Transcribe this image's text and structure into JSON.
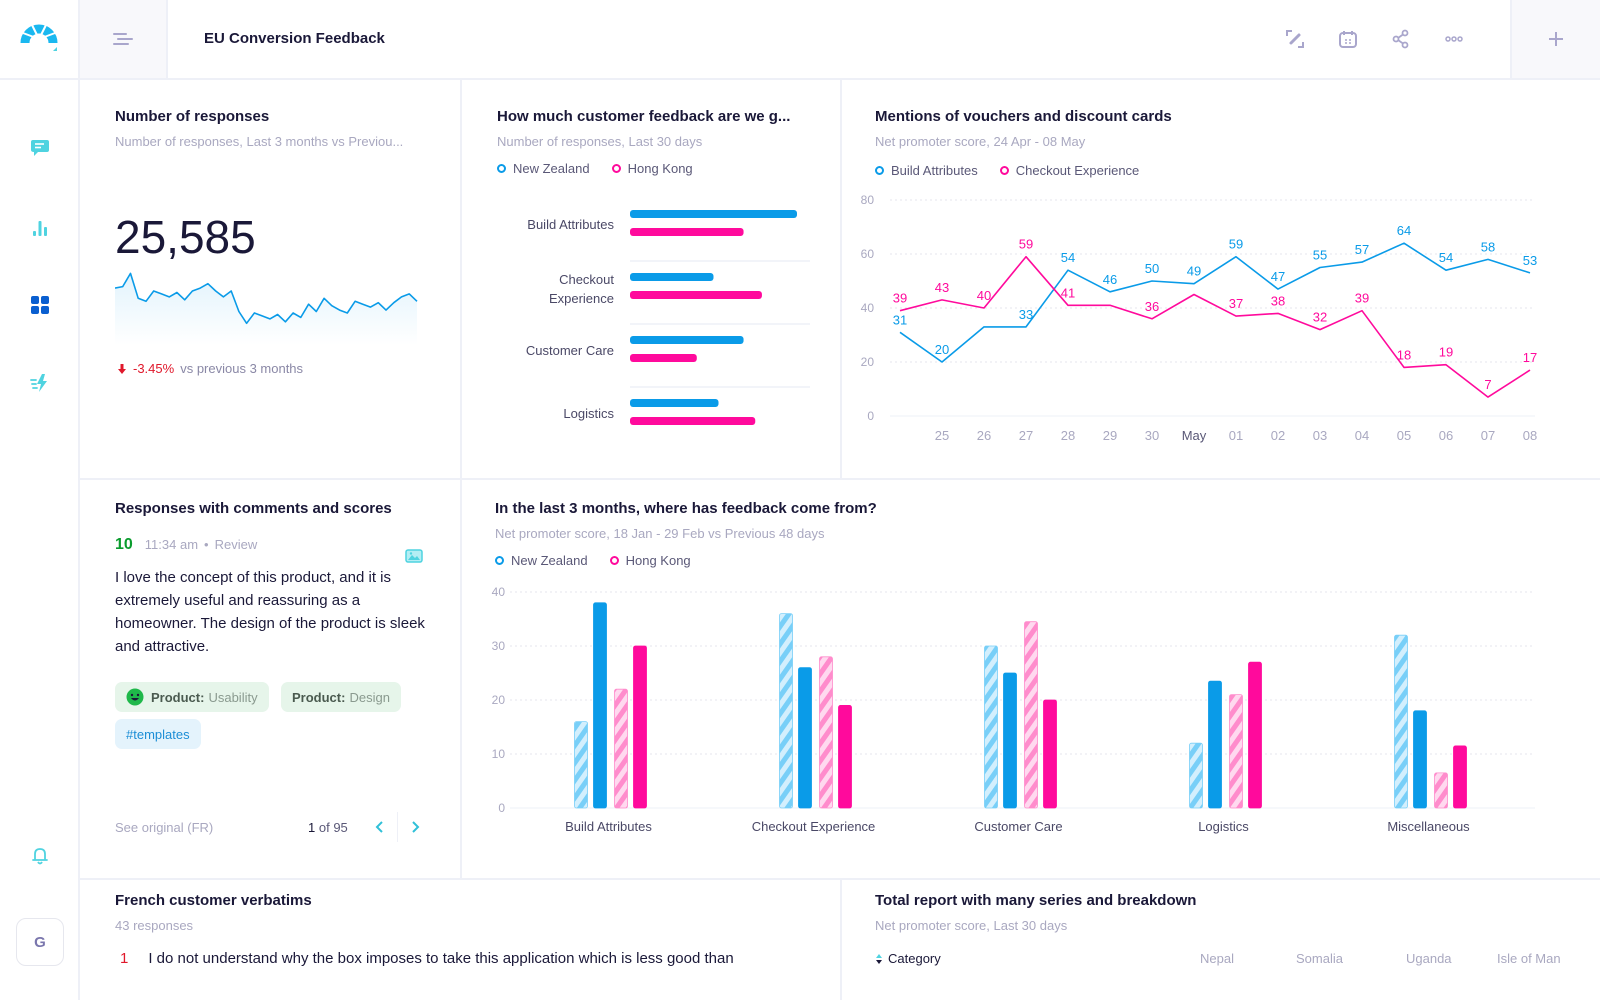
{
  "header": {
    "title": "EU Conversion Feedback",
    "actions": [
      "edit-icon",
      "calendar-icon",
      "share-icon",
      "more-icon"
    ],
    "add_icon": "plus-icon"
  },
  "sidebar": {
    "items": [
      {
        "name": "feedback",
        "icon": "chat-icon",
        "active": false
      },
      {
        "name": "reports",
        "icon": "bar-chart-icon",
        "active": false
      },
      {
        "name": "dashboards",
        "icon": "grid-icon",
        "active": true
      },
      {
        "name": "automations",
        "icon": "lightning-icon",
        "active": false
      }
    ],
    "bell_icon": "bell-icon",
    "avatar_initial": "G"
  },
  "colors": {
    "blue": "#0a9be8",
    "pink": "#ff0a9c",
    "teal": "#4fd3e0",
    "active_nav": "#0a5fd0",
    "negative": "#e0182b",
    "positive": "#0a9c2e"
  },
  "cards": {
    "responses": {
      "title": "Number of responses",
      "subtitle": "Number of responses, Last 3 months vs Previou...",
      "value": "25,585",
      "delta": "-3.45%",
      "delta_text": "vs previous 3 months"
    },
    "feedback_amount": {
      "title": "How much customer feedback are we g...",
      "subtitle": "Number of responses, Last 30 days",
      "legend": [
        "New Zealand",
        "Hong Kong"
      ]
    },
    "vouchers": {
      "title": "Mentions of vouchers and discount cards",
      "subtitle": "Net promoter score, 24 Apr - 08 May",
      "legend": [
        "Build Attributes",
        "Checkout Experience"
      ]
    },
    "comments": {
      "title": "Responses with comments and scores",
      "score": "10",
      "time": "11:34 am",
      "separator": "•",
      "source": "Review",
      "text": "I love the concept of this product, and it is extremely useful and reassuring as a homeowner. The design of the product is sleek and attractive.",
      "tags": [
        {
          "key": "Product:",
          "value": "Usability",
          "icon": "smiley-icon"
        },
        {
          "key": "Product:",
          "value": "Design"
        }
      ],
      "hashtag": "#templates",
      "see_original": "See original (FR)",
      "page_current": "1",
      "page_of": "of 95"
    },
    "feedback_source": {
      "title": "In the last 3 months, where has feedback come from?",
      "subtitle": "Net promoter score, 18 Jan - 29 Feb vs Previous 48 days",
      "legend": [
        "New Zealand",
        "Hong Kong"
      ]
    },
    "verbatims": {
      "title": "French customer verbatims",
      "subtitle": "43 responses",
      "rows": [
        {
          "score": "1",
          "text": "I do not understand why the box imposes to take this application which is less good than"
        }
      ]
    },
    "total_report": {
      "title": "Total report with many series and breakdown",
      "subtitle": "Net promoter score, Last 30 days",
      "columns": [
        "Category",
        "Nepal",
        "Somalia",
        "Uganda",
        "Isle of Man"
      ]
    }
  },
  "chart_data": [
    {
      "id": "responses_sparkline",
      "type": "area",
      "title": "Number of responses",
      "values": [
        62,
        63,
        72,
        55,
        53,
        60,
        58,
        56,
        59,
        54,
        60,
        62,
        65,
        60,
        56,
        60,
        46,
        38,
        45,
        43,
        41,
        44,
        39,
        45,
        42,
        51,
        46,
        55,
        50,
        47,
        45,
        53,
        51,
        49,
        52,
        47,
        52,
        56,
        58,
        53
      ]
    },
    {
      "id": "feedback_amount",
      "type": "bar",
      "orientation": "horizontal",
      "title": "How much customer feedback are we g...",
      "categories": [
        "Build Attributes",
        "Checkout Experience",
        "Customer Care",
        "Logistics"
      ],
      "value_unit": "percent of largest bar",
      "series": [
        {
          "name": "New Zealand",
          "values": [
            100,
            50,
            68,
            53
          ]
        },
        {
          "name": "Hong Kong",
          "values": [
            68,
            79,
            40,
            75
          ]
        }
      ]
    },
    {
      "id": "vouchers",
      "type": "line",
      "title": "Mentions of vouchers and discount cards",
      "x": [
        "24",
        "25",
        "26",
        "27",
        "28",
        "29",
        "30",
        "May",
        "01",
        "02",
        "03",
        "04",
        "05",
        "06",
        "07",
        "08"
      ],
      "x_tick_labels": [
        "25",
        "26",
        "27",
        "28",
        "29",
        "30",
        "May",
        "01",
        "02",
        "03",
        "04",
        "05",
        "06",
        "07",
        "08"
      ],
      "ylim": [
        0,
        80
      ],
      "yticks": [
        0,
        20,
        40,
        60,
        80
      ],
      "grid": true,
      "legend": "top-left",
      "series": [
        {
          "name": "Build Attributes",
          "values": [
            31,
            20,
            33,
            33,
            54,
            46,
            50,
            49,
            59,
            47,
            55,
            57,
            64,
            54,
            58,
            53
          ],
          "labels": [
            "31",
            "20",
            "",
            "33",
            "54",
            "46",
            "50",
            "49",
            "59",
            "47",
            "55",
            "57",
            "64",
            "54",
            "58",
            "53"
          ]
        },
        {
          "name": "Checkout Experience",
          "values": [
            39,
            43,
            40,
            59,
            41,
            41,
            36,
            45,
            37,
            38,
            32,
            39,
            18,
            19,
            7,
            17
          ],
          "labels": [
            "39",
            "43",
            "40",
            "59",
            "41",
            "",
            "36",
            "",
            "37",
            "38",
            "32",
            "39",
            "18",
            "19",
            "7",
            "17"
          ]
        }
      ]
    },
    {
      "id": "feedback_source",
      "type": "bar",
      "title": "In the last 3 months, where has feedback come from?",
      "categories": [
        "Build Attributes",
        "Checkout Experience",
        "Customer Care",
        "Logistics",
        "Miscellaneous"
      ],
      "ylim": [
        0,
        40
      ],
      "yticks": [
        0,
        10,
        20,
        30,
        40
      ],
      "grid": true,
      "legend": "top-left",
      "series": [
        {
          "name": "New Zealand (previous)",
          "values": [
            16,
            36,
            30,
            12,
            32
          ]
        },
        {
          "name": "New Zealand",
          "values": [
            38,
            26,
            25,
            23.5,
            18
          ]
        },
        {
          "name": "Hong Kong (previous)",
          "values": [
            22,
            28,
            34.5,
            21,
            6.5
          ]
        },
        {
          "name": "Hong Kong",
          "values": [
            30,
            19,
            20,
            27,
            11.5
          ]
        }
      ]
    }
  ]
}
